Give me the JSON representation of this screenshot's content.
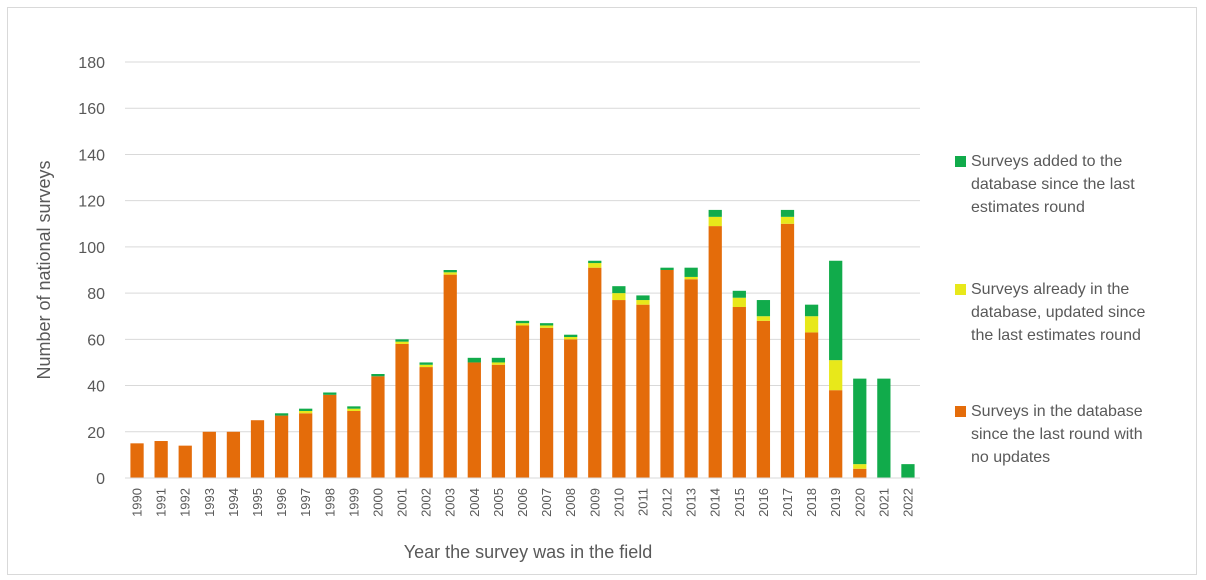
{
  "chart_data": {
    "type": "bar",
    "stacked": true,
    "title": "",
    "xlabel": "Year the survey was in the field",
    "ylabel": "Number of national surveys",
    "ylim": [
      0,
      180
    ],
    "yticks": [
      0,
      20,
      40,
      60,
      80,
      100,
      120,
      140,
      160,
      180
    ],
    "grid": true,
    "legend_position": "right",
    "categories": [
      "1990",
      "1991",
      "1992",
      "1993",
      "1994",
      "1995",
      "1996",
      "1997",
      "1998",
      "1999",
      "2000",
      "2001",
      "2002",
      "2003",
      "2004",
      "2005",
      "2006",
      "2007",
      "2008",
      "2009",
      "2010",
      "2011",
      "2012",
      "2013",
      "2014",
      "2015",
      "2016",
      "2017",
      "2018",
      "2019",
      "2020",
      "2021",
      "2022"
    ],
    "series": [
      {
        "name": "Surveys in the database since the last round with no updates",
        "legend_lines": [
          "Surveys in the database",
          "since the last round with",
          "no updates"
        ],
        "color": "#E46C0A",
        "values": [
          15,
          16,
          14,
          20,
          20,
          25,
          27,
          28,
          36,
          29,
          44,
          58,
          48,
          88,
          50,
          49,
          66,
          65,
          60,
          91,
          77,
          75,
          90,
          86,
          109,
          74,
          68,
          110,
          63,
          38,
          4,
          0,
          0
        ]
      },
      {
        "name": "Surveys already in the database, updated since the last estimates round",
        "legend_lines": [
          "Surveys already in the",
          "database, updated since",
          "the last estimates round"
        ],
        "color": "#E8E81A",
        "values": [
          0,
          0,
          0,
          0,
          0,
          0,
          0,
          1,
          0,
          1,
          0,
          1,
          1,
          1,
          0,
          1,
          1,
          1,
          1,
          2,
          3,
          2,
          0,
          1,
          4,
          4,
          2,
          3,
          7,
          13,
          2,
          0,
          0
        ]
      },
      {
        "name": "Surveys added to the database since the last estimates round",
        "legend_lines": [
          "Surveys added to the",
          "database since the last",
          "estimates round"
        ],
        "color": "#11AB4B",
        "values": [
          0,
          0,
          0,
          0,
          0,
          0,
          1,
          1,
          1,
          1,
          1,
          1,
          1,
          1,
          2,
          2,
          1,
          1,
          1,
          1,
          3,
          2,
          1,
          4,
          3,
          3,
          7,
          3,
          5,
          43,
          37,
          43,
          6
        ]
      }
    ]
  }
}
